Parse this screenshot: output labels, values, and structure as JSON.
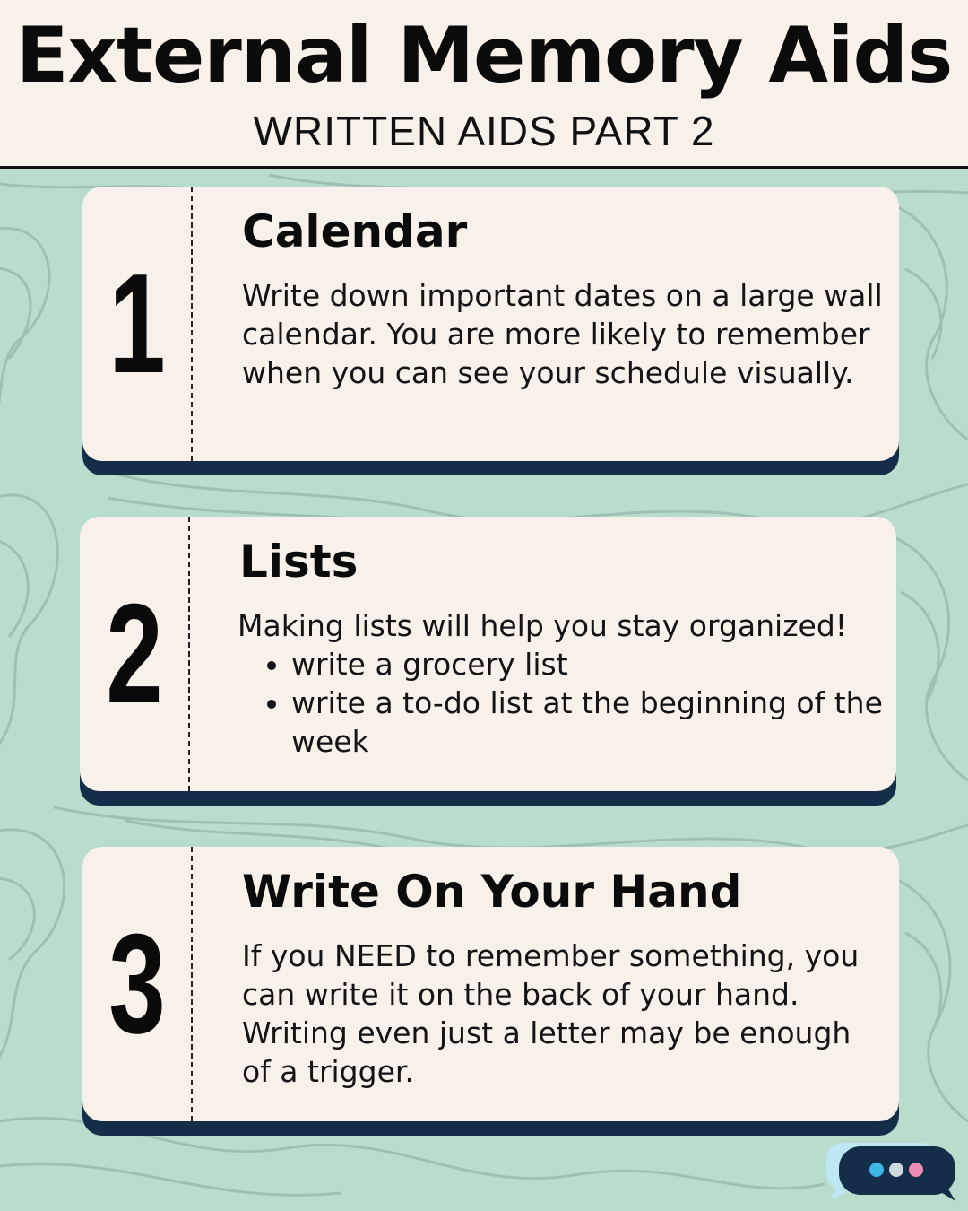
{
  "header": {
    "title": "External Memory Aids",
    "subtitle": "WRITTEN AIDS PART 2"
  },
  "cards": [
    {
      "number": "1",
      "heading": "Calendar",
      "body": "Write down important dates on a large wall calendar. You are more likely to remember when you can see your schedule visually."
    },
    {
      "number": "2",
      "heading": "Lists",
      "intro": "Making lists will help you stay organized!",
      "bullets": [
        "write a grocery list",
        "write a to-do list at the beginning of the week"
      ]
    },
    {
      "number": "3",
      "heading": "Write On Your Hand",
      "body": "If you NEED to remember something, you can write it on the back of your hand. Writing even just a letter may be enough of a trigger."
    }
  ],
  "colors": {
    "background": "#b9ddcc",
    "card": "#f8f1ea",
    "card_shadow": "#142e4a",
    "chat_dots": [
      "#3fb7e6",
      "#cfd8dc",
      "#f08bb4"
    ]
  },
  "icons": {
    "corner": "chat-bubble-icon"
  }
}
